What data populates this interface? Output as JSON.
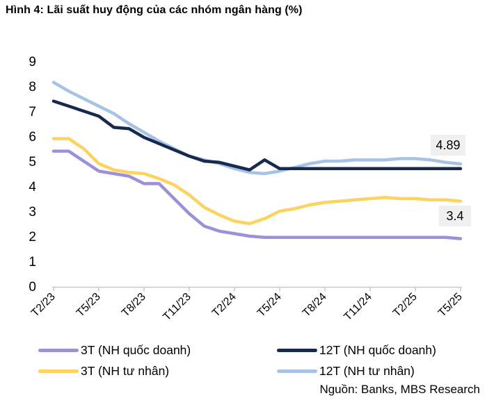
{
  "title": "Hình 4: Lãi suất huy động của các nhóm ngân hàng (%)",
  "source": "Nguồn: Banks, MBS Research",
  "colors": {
    "state_3m": "#9e90d8",
    "private_3m": "#fbd35e",
    "state_12m": "#17294f",
    "private_12m": "#a6c3e6",
    "label_bg": "#f0f0f0",
    "axis": "#c8c8c8",
    "text": "#000000"
  },
  "legend": {
    "items": [
      {
        "label": "3T (NH quốc doanh)",
        "color_key": "state_3m"
      },
      {
        "label": "12T (NH quốc doanh)",
        "color_key": "state_12m"
      },
      {
        "label": "3T (NH tư nhân)",
        "color_key": "private_3m"
      },
      {
        "label": "12T (NH tư nhân)",
        "color_key": "private_12m"
      }
    ]
  },
  "chart_data": {
    "type": "line",
    "title": "Hình 4: Lãi suất huy động của các nhóm ngân hàng (%)",
    "xlabel": "",
    "ylabel": "",
    "ylim": [
      0,
      9
    ],
    "y_ticks": [
      0,
      1,
      2,
      3,
      4,
      5,
      6,
      7,
      8,
      9
    ],
    "grid": false,
    "legend_position": "bottom",
    "x": [
      "T2/23",
      "T3/23",
      "T4/23",
      "T5/23",
      "T6/23",
      "T7/23",
      "T8/23",
      "T9/23",
      "T10/23",
      "T11/23",
      "T12/23",
      "T1/24",
      "T2/24",
      "T3/24",
      "T4/24",
      "T5/24",
      "T6/24",
      "T7/24",
      "T8/24",
      "T9/24",
      "T10/24",
      "T11/24",
      "T12/24",
      "T1/25",
      "T2/25",
      "T3/25",
      "T4/25",
      "T5/25"
    ],
    "x_tick_labels": [
      "T2/23",
      "T5/23",
      "T8/23",
      "T11/23",
      "T2/24",
      "T5/24",
      "T8/24",
      "T11/24",
      "T2/25",
      "T5/25"
    ],
    "x_tick_every": 3,
    "series": [
      {
        "name": "3T (NH quốc doanh)",
        "color_key": "state_3m",
        "values": [
          5.4,
          5.4,
          5.0,
          4.6,
          4.5,
          4.4,
          4.1,
          4.1,
          3.5,
          2.9,
          2.4,
          2.2,
          2.1,
          2.0,
          1.95,
          1.95,
          1.95,
          1.95,
          1.95,
          1.95,
          1.95,
          1.95,
          1.95,
          1.95,
          1.95,
          1.95,
          1.95,
          1.9
        ]
      },
      {
        "name": "3T (NH tư nhân)",
        "color_key": "private_3m",
        "values": [
          5.9,
          5.9,
          5.5,
          4.9,
          4.65,
          4.55,
          4.5,
          4.3,
          4.05,
          3.65,
          3.15,
          2.85,
          2.6,
          2.5,
          2.7,
          3.0,
          3.1,
          3.25,
          3.35,
          3.4,
          3.45,
          3.5,
          3.55,
          3.5,
          3.5,
          3.45,
          3.45,
          3.4
        ]
      },
      {
        "name": "12T (NH tư nhân)",
        "color_key": "private_12m",
        "values": [
          8.15,
          7.8,
          7.5,
          7.2,
          6.9,
          6.5,
          6.15,
          5.8,
          5.5,
          5.2,
          5.05,
          4.9,
          4.7,
          4.55,
          4.5,
          4.6,
          4.75,
          4.9,
          5.0,
          5.0,
          5.05,
          5.05,
          5.05,
          5.1,
          5.1,
          5.05,
          4.95,
          4.89
        ]
      },
      {
        "name": "12T (NH quốc doanh)",
        "color_key": "state_12m",
        "values": [
          7.4,
          7.2,
          7.0,
          6.8,
          6.35,
          6.3,
          5.95,
          5.7,
          5.45,
          5.2,
          5.0,
          4.95,
          4.8,
          4.65,
          5.05,
          4.7,
          4.7,
          4.7,
          4.7,
          4.7,
          4.7,
          4.7,
          4.7,
          4.7,
          4.7,
          4.7,
          4.7,
          4.7
        ]
      }
    ],
    "end_labels": [
      {
        "series": "12T (NH tư nhân)",
        "value": "4.89"
      },
      {
        "series": "3T (NH tư nhân)",
        "value": "3.4"
      }
    ]
  }
}
